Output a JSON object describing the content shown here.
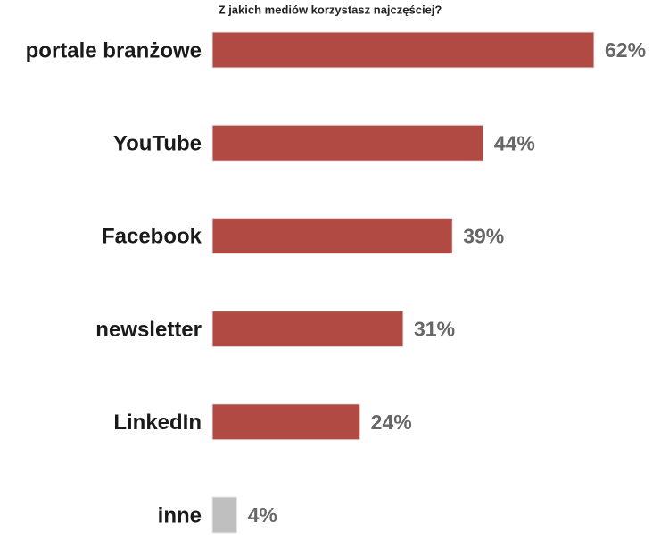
{
  "chart_data": {
    "type": "bar",
    "orientation": "horizontal",
    "title": "Z jakich mediów korzystasz najczęściej?",
    "categories": [
      "portale branżowe",
      "YouTube",
      "Facebook",
      "newsletter",
      "LinkedIn",
      "inne"
    ],
    "values": [
      62,
      44,
      39,
      31,
      24,
      4
    ],
    "value_labels": [
      "62%",
      "44%",
      "39%",
      "31%",
      "24%",
      "4%"
    ],
    "colors": [
      "#b04a43",
      "#b04a43",
      "#b04a43",
      "#b04a43",
      "#b04a43",
      "#bfbfbf"
    ]
  }
}
